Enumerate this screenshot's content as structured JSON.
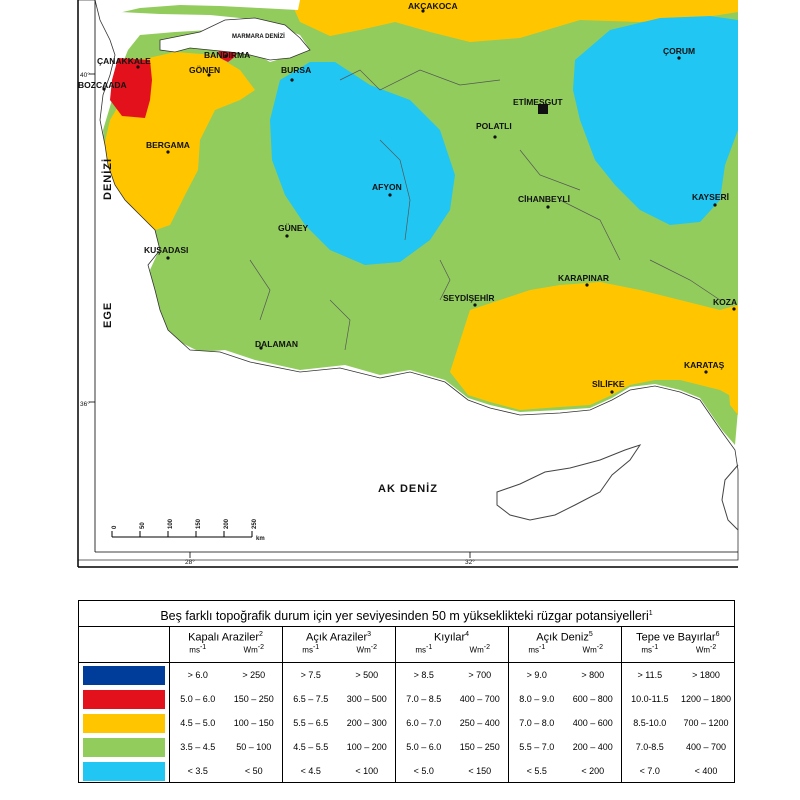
{
  "map": {
    "cities": [
      {
        "id": "akcakoca",
        "label": "AKÇAKOCA"
      },
      {
        "id": "marmara",
        "label": "MARMARA DENİZİ"
      },
      {
        "id": "canakkale",
        "label": "ÇANAKKALE"
      },
      {
        "id": "bozcaada",
        "label": "BOZCAADA"
      },
      {
        "id": "bandirma",
        "label": "BANDIRMA"
      },
      {
        "id": "gonen",
        "label": "GÖNEN"
      },
      {
        "id": "bursa",
        "label": "BURSA"
      },
      {
        "id": "corum",
        "label": "ÇORUM"
      },
      {
        "id": "etimesgut",
        "label": "ETİMESGUT"
      },
      {
        "id": "polatli",
        "label": "POLATLI"
      },
      {
        "id": "bergama",
        "label": "BERGAMA"
      },
      {
        "id": "afyon",
        "label": "AFYON"
      },
      {
        "id": "cihanbeyli",
        "label": "CİHANBEYLİ"
      },
      {
        "id": "kayseri",
        "label": "KAYSERİ"
      },
      {
        "id": "guney",
        "label": "GÜNEY"
      },
      {
        "id": "kusadasi",
        "label": "KUŞADASI"
      },
      {
        "id": "karapinar",
        "label": "KARAPINAR"
      },
      {
        "id": "seydisehir",
        "label": "SEYDİŞEHİR"
      },
      {
        "id": "koza",
        "label": "KOZA"
      },
      {
        "id": "dalaman",
        "label": "DALAMAN"
      },
      {
        "id": "karatas",
        "label": "KARATAŞ"
      },
      {
        "id": "silifke",
        "label": "SİLİFKE"
      }
    ],
    "seas": {
      "ege": "EGE",
      "denizi": "DENİZİ",
      "akdeniz": "AK DENİZ"
    },
    "lat_labels": {
      "lat40": "40°",
      "lat36": "36°"
    },
    "lon_labels": {
      "lon28": "28°",
      "lon32": "32°"
    },
    "scale_ticks": [
      "0",
      "50",
      "100",
      "150",
      "200",
      "250"
    ],
    "scale_unit": "km",
    "colors": {
      "sea": "#ffffff",
      "yellow": "#ffc600",
      "green": "#92cc5d",
      "cyan": "#21c6f2",
      "red": "#e3111b",
      "border": "#333333"
    }
  },
  "legend": {
    "title": "Beş farklı topoğrafik durum için yer seviyesinden 50 m yükseklikteki rüzgar potansiyelleri",
    "title_sup": "1",
    "columns": [
      {
        "name": "Kapalı Araziler",
        "sup": "2"
      },
      {
        "name": "Açık Araziler",
        "sup": "3"
      },
      {
        "name": "Kıyılar",
        "sup": "4"
      },
      {
        "name": "Açık Deniz",
        "sup": "5"
      },
      {
        "name": "Tepe ve Bayırlar",
        "sup": "6"
      }
    ],
    "unit_speed": "ms",
    "unit_speed_sup": "-1",
    "unit_power": "Wm",
    "unit_power_sup": "-2",
    "rows": [
      {
        "color": "#003c99",
        "values": [
          "> 6.0",
          "> 250",
          "> 7.5",
          "> 500",
          "> 8.5",
          "> 700",
          "> 9.0",
          "> 800",
          "> 11.5",
          "> 1800"
        ]
      },
      {
        "color": "#e3111b",
        "values": [
          "5.0 – 6.0",
          "150 – 250",
          "6.5 – 7.5",
          "300 – 500",
          "7.0 – 8.5",
          "400 – 700",
          "8.0 – 9.0",
          "600 – 800",
          "10.0-11.5",
          "1200 – 1800"
        ]
      },
      {
        "color": "#ffc600",
        "values": [
          "4.5 – 5.0",
          "100 – 150",
          "5.5 – 6.5",
          "200 – 300",
          "6.0 – 7.0",
          "250 – 400",
          "7.0 – 8.0",
          "400 – 600",
          "8.5-10.0",
          "700 – 1200"
        ]
      },
      {
        "color": "#92cc5d",
        "values": [
          "3.5 – 4.5",
          "50 – 100",
          "4.5 – 5.5",
          "100 – 200",
          "5.0 – 6.0",
          "150 – 250",
          "5.5 – 7.0",
          "200 – 400",
          "7.0-8.5",
          "400 – 700"
        ]
      },
      {
        "color": "#21c6f2",
        "values": [
          "< 3.5",
          "< 50",
          "< 4.5",
          "< 100",
          "< 5.0",
          "< 150",
          "< 5.5",
          "< 200",
          "< 7.0",
          "< 400"
        ]
      }
    ]
  }
}
